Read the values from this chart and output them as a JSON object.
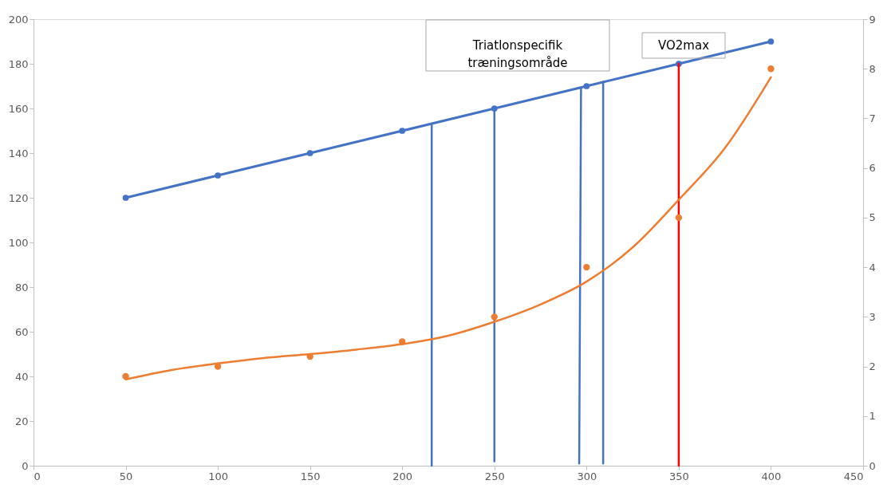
{
  "chart_data": {
    "type": "line",
    "xlim": [
      0,
      450
    ],
    "xticks": [
      0,
      50,
      100,
      150,
      200,
      250,
      300,
      350,
      400,
      450
    ],
    "ylim": [
      0,
      200
    ],
    "yticks": [
      0,
      20,
      40,
      60,
      80,
      100,
      120,
      140,
      160,
      180,
      200
    ],
    "y2lim": [
      0,
      9
    ],
    "y2ticks": [
      0,
      1,
      2,
      3,
      4,
      5,
      6,
      7,
      8,
      9
    ],
    "grid": false,
    "annotations": [
      "Triatlonspecifik\ntræningsområde",
      "VO2max"
    ],
    "series": [
      {
        "marker": "circle",
        "color": "#4472c4",
        "x": [
          50,
          100,
          150,
          200,
          250,
          300,
          350,
          400
        ],
        "values": [
          120,
          130,
          140,
          150,
          160,
          170,
          180,
          190
        ]
      },
      {
        "type": "scatter",
        "marker": "circle",
        "axis": "y2",
        "color": "#ed7d31",
        "x": [
          50,
          100,
          150,
          200,
          250,
          300,
          350,
          400
        ],
        "values": [
          1.8,
          2.0,
          2.2,
          2.5,
          3.0,
          4.0,
          5.0,
          8.0
        ]
      },
      {
        "marker": "none",
        "axis": "y2",
        "color": "#ed7d31",
        "x": [
          50,
          75,
          100,
          125,
          150,
          175,
          200,
          225,
          250,
          275,
          300,
          325,
          350,
          375,
          400
        ],
        "values": [
          1.74,
          1.93,
          2.06,
          2.17,
          2.25,
          2.34,
          2.45,
          2.62,
          2.9,
          3.25,
          3.71,
          4.4,
          5.36,
          6.4,
          7.83
        ]
      },
      {
        "marker": "none",
        "color": "#4472c4",
        "x": [
          216,
          216
        ],
        "values": [
          0,
          153
        ]
      },
      {
        "marker": "none",
        "color": "#4472c4",
        "x": [
          250,
          250
        ],
        "values": [
          2,
          160
        ]
      },
      {
        "marker": "none",
        "color": "#4472c4",
        "x": [
          296,
          297
        ],
        "values": [
          1,
          169
        ]
      },
      {
        "marker": "none",
        "color": "#4472c4",
        "x": [
          309,
          309
        ],
        "values": [
          1,
          172
        ]
      },
      {
        "marker": "none",
        "color": "#ff0000",
        "x": [
          350,
          350
        ],
        "values": [
          0,
          180
        ]
      }
    ]
  }
}
